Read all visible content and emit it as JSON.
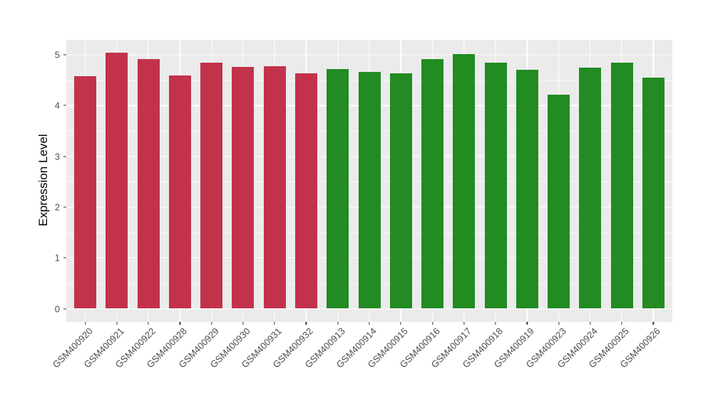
{
  "chart_data": {
    "type": "bar",
    "title": "",
    "xlabel": "",
    "ylabel": "Expression Level",
    "categories": [
      "GSM400920",
      "GSM400921",
      "GSM400922",
      "GSM400928",
      "GSM400929",
      "GSM400930",
      "GSM400931",
      "GSM400932",
      "GSM400913",
      "GSM400914",
      "GSM400915",
      "GSM400916",
      "GSM400917",
      "GSM400918",
      "GSM400919",
      "GSM400923",
      "GSM400924",
      "GSM400925",
      "GSM400926"
    ],
    "values": [
      4.58,
      5.04,
      4.91,
      4.59,
      4.84,
      4.76,
      4.78,
      4.64,
      4.72,
      4.66,
      4.63,
      4.92,
      5.01,
      4.85,
      4.7,
      4.22,
      4.75,
      4.84,
      4.55
    ],
    "bar_colors": [
      "#C3324B",
      "#C3324B",
      "#C3324B",
      "#C3324B",
      "#C3324B",
      "#C3324B",
      "#C3324B",
      "#C3324B",
      "#228B22",
      "#228B22",
      "#228B22",
      "#228B22",
      "#228B22",
      "#228B22",
      "#228B22",
      "#228B22",
      "#228B22",
      "#228B22",
      "#228B22"
    ],
    "color_groups": [
      {
        "color": "#C3324B",
        "categories": [
          "GSM400920",
          "GSM400921",
          "GSM400922",
          "GSM400928",
          "GSM400929",
          "GSM400930",
          "GSM400931",
          "GSM400932"
        ]
      },
      {
        "color": "#228B22",
        "categories": [
          "GSM400913",
          "GSM400914",
          "GSM400915",
          "GSM400916",
          "GSM400917",
          "GSM400918",
          "GSM400919",
          "GSM400923",
          "GSM400924",
          "GSM400925",
          "GSM400926"
        ]
      }
    ],
    "yticks": [
      0,
      1,
      2,
      3,
      4,
      5
    ],
    "minor_yticks": [
      0.5,
      1.5,
      2.5,
      3.5,
      4.5
    ],
    "ylim": [
      0,
      5.29
    ],
    "x_tick_angle": 45,
    "legend": "none",
    "grid": "white major+minor horizontal, white major vertical at category centers, on grey panel"
  },
  "colors": {
    "panel_bg": "#EBEBEB",
    "grid": "#FFFFFF",
    "axis_text": "#4D4D4D",
    "axis_title": "#000000",
    "tick_mark": "#333333",
    "figure_bg": "#FFFFFF"
  }
}
